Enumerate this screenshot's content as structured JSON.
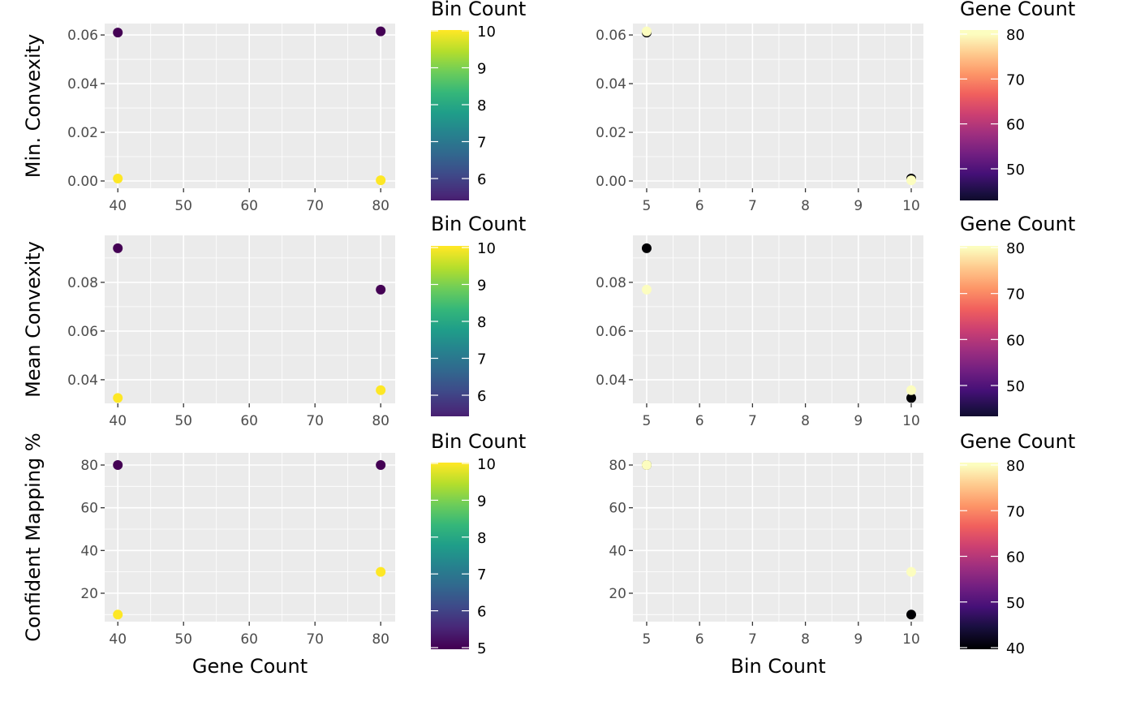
{
  "chart_data": [
    {
      "type": "scatter",
      "ylabel": "Min. Convexity",
      "xlabel": "",
      "xlim": [
        38,
        82.2
      ],
      "ylim": [
        -0.003,
        0.0647
      ],
      "xticks": [
        "40",
        "50",
        "60",
        "70",
        "80"
      ],
      "yticks": [
        "0.00",
        "0.02",
        "0.04",
        "0.06"
      ],
      "points": [
        {
          "x": 40,
          "y": 0.061,
          "c": 5
        },
        {
          "x": 80,
          "y": 0.0615,
          "c": 5
        },
        {
          "x": 40,
          "y": 0.001,
          "c": 10
        },
        {
          "x": 80,
          "y": 0.0003,
          "c": 10
        }
      ],
      "color_scale": {
        "title": "Bin Count",
        "palette": "viridis",
        "low_color": "#440154",
        "high_color": "#FDE725",
        "range": [
          5,
          10
        ],
        "ticks": [
          "6",
          "7",
          "8",
          "9",
          "10"
        ]
      }
    },
    {
      "type": "scatter",
      "ylabel": "",
      "xlabel": "",
      "xlim": [
        4.74,
        10.23
      ],
      "ylim": [
        -0.003,
        0.0647
      ],
      "xticks": [
        "5",
        "6",
        "7",
        "8",
        "9",
        "10"
      ],
      "yticks": [
        "0.00",
        "0.02",
        "0.04",
        "0.06"
      ],
      "points": [
        {
          "x": 5,
          "y": 0.061,
          "c": 40
        },
        {
          "x": 5,
          "y": 0.0615,
          "c": 80
        },
        {
          "x": 10,
          "y": 0.001,
          "c": 40
        },
        {
          "x": 10,
          "y": 0.0003,
          "c": 80
        }
      ],
      "color_scale": {
        "title": "Gene Count",
        "palette": "magma",
        "low_color": "#000004",
        "high_color": "#FCFDBF",
        "range": [
          40,
          80
        ],
        "ticks": [
          "50",
          "60",
          "70",
          "80"
        ]
      }
    },
    {
      "type": "scatter",
      "ylabel": "Mean Convexity",
      "xlabel": "",
      "xlim": [
        38,
        82.2
      ],
      "ylim": [
        0.0303,
        0.0993
      ],
      "xticks": [
        "40",
        "50",
        "60",
        "70",
        "80"
      ],
      "yticks": [
        "0.04",
        "0.06",
        "0.08"
      ],
      "points": [
        {
          "x": 40,
          "y": 0.094,
          "c": 5
        },
        {
          "x": 80,
          "y": 0.077,
          "c": 5
        },
        {
          "x": 40,
          "y": 0.0325,
          "c": 10
        },
        {
          "x": 80,
          "y": 0.0357,
          "c": 10
        }
      ],
      "color_scale": {
        "title": "Bin Count",
        "palette": "viridis",
        "low_color": "#440154",
        "high_color": "#FDE725",
        "range": [
          5,
          10
        ],
        "ticks": [
          "6",
          "7",
          "8",
          "9",
          "10"
        ]
      }
    },
    {
      "type": "scatter",
      "ylabel": "",
      "xlabel": "",
      "xlim": [
        4.74,
        10.23
      ],
      "ylim": [
        0.0303,
        0.0993
      ],
      "xticks": [
        "5",
        "6",
        "7",
        "8",
        "9",
        "10"
      ],
      "yticks": [
        "0.04",
        "0.06",
        "0.08"
      ],
      "points": [
        {
          "x": 5,
          "y": 0.094,
          "c": 40
        },
        {
          "x": 5,
          "y": 0.077,
          "c": 80
        },
        {
          "x": 10,
          "y": 0.0325,
          "c": 40
        },
        {
          "x": 10,
          "y": 0.0357,
          "c": 80
        }
      ],
      "color_scale": {
        "title": "Gene Count",
        "palette": "magma",
        "low_color": "#000004",
        "high_color": "#FCFDBF",
        "range": [
          40,
          80
        ],
        "ticks": [
          "50",
          "60",
          "70",
          "80"
        ]
      }
    },
    {
      "type": "scatter",
      "ylabel": "Confident Mapping %",
      "xlabel": "Gene Count",
      "xlim": [
        38,
        82.2
      ],
      "ylim": [
        6.7,
        85.7
      ],
      "xticks": [
        "40",
        "50",
        "60",
        "70",
        "80"
      ],
      "yticks": [
        "20",
        "40",
        "60",
        "80"
      ],
      "points": [
        {
          "x": 40,
          "y": 80,
          "c": 5
        },
        {
          "x": 80,
          "y": 80,
          "c": 5
        },
        {
          "x": 40,
          "y": 10,
          "c": 10
        },
        {
          "x": 80,
          "y": 30,
          "c": 10
        }
      ],
      "color_scale": {
        "title": "Bin Count",
        "palette": "viridis",
        "low_color": "#440154",
        "high_color": "#FDE725",
        "range": [
          5,
          10
        ],
        "ticks": [
          "5",
          "6",
          "7",
          "8",
          "9",
          "10"
        ]
      }
    },
    {
      "type": "scatter",
      "ylabel": "",
      "xlabel": "Bin Count",
      "xlim": [
        4.74,
        10.23
      ],
      "ylim": [
        6.7,
        85.7
      ],
      "xticks": [
        "5",
        "6",
        "7",
        "8",
        "9",
        "10"
      ],
      "yticks": [
        "20",
        "40",
        "60",
        "80"
      ],
      "points": [
        {
          "x": 5,
          "y": 80,
          "c": 40
        },
        {
          "x": 5,
          "y": 80,
          "c": 80
        },
        {
          "x": 10,
          "y": 10,
          "c": 40
        },
        {
          "x": 10,
          "y": 30,
          "c": 80
        }
      ],
      "color_scale": {
        "title": "Gene Count",
        "palette": "magma",
        "low_color": "#000004",
        "high_color": "#FCFDBF",
        "range": [
          40,
          80
        ],
        "ticks": [
          "40",
          "50",
          "60",
          "70",
          "80"
        ]
      }
    }
  ]
}
